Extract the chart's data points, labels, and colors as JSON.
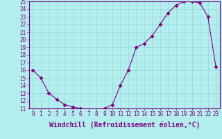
{
  "x": [
    0,
    1,
    2,
    3,
    4,
    5,
    6,
    7,
    8,
    9,
    10,
    11,
    12,
    13,
    14,
    15,
    16,
    17,
    18,
    19,
    20,
    21,
    22,
    23
  ],
  "y": [
    16,
    15,
    13,
    12.2,
    11.5,
    11.2,
    11.0,
    10.8,
    10.8,
    11.0,
    11.5,
    14.0,
    16.0,
    19.0,
    19.5,
    20.5,
    22.0,
    23.5,
    24.5,
    25.0,
    25.0,
    24.8,
    23.0,
    16.5
  ],
  "line_color": "#800080",
  "marker": "D",
  "marker_size": 2.5,
  "background_color": "#b2eeee",
  "grid_color": "#a0d8d8",
  "xlabel": "Windchill (Refroidissement éolien,°C)",
  "xlabel_fontsize": 7,
  "ylim": [
    11,
    25
  ],
  "xlim": [
    -0.5,
    23.5
  ],
  "yticks": [
    11,
    12,
    13,
    14,
    15,
    16,
    17,
    18,
    19,
    20,
    21,
    22,
    23,
    24,
    25
  ],
  "xticks": [
    0,
    1,
    2,
    3,
    4,
    5,
    6,
    7,
    8,
    9,
    10,
    11,
    12,
    13,
    14,
    15,
    16,
    17,
    18,
    19,
    20,
    21,
    22,
    23
  ],
  "tick_fontsize": 5.5,
  "label_color": "#800080",
  "axis_color": "#800080",
  "linewidth": 0.8
}
